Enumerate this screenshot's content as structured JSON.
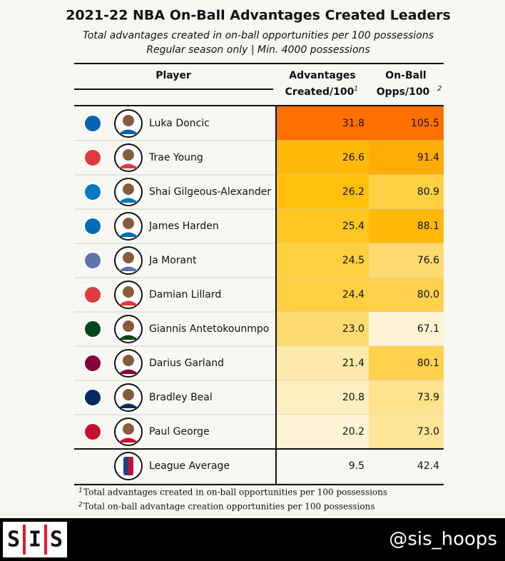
{
  "header": {
    "title": "2021-22 NBA On-Ball Advantages Created Leaders",
    "subtitle_lines": [
      "Total advantages created in on-ball opportunities per 100 possessions",
      "Regular season only | Min. 4000 possessions"
    ]
  },
  "table": {
    "columns": {
      "player": "Player",
      "adv": [
        "Advantages",
        "Created/100"
      ],
      "adv_note": "1",
      "opps": [
        "On-Ball",
        "Opps/100"
      ],
      "opps_note": "2"
    },
    "rows": [
      [
        "Luka Doncic",
        "31.8",
        "105.5"
      ],
      [
        "Trae Young",
        "26.6",
        "91.4"
      ],
      [
        "Shai Gilgeous-Alexander",
        "26.2",
        "80.9"
      ],
      [
        "James Harden",
        "25.4",
        "88.1"
      ],
      [
        "Ja Morant",
        "24.5",
        "76.6"
      ],
      [
        "Damian Lillard",
        "24.4",
        "80.0"
      ],
      [
        "Giannis Antetokounmpo",
        "23.0",
        "67.1"
      ],
      [
        "Darius Garland",
        "21.4",
        "80.1"
      ],
      [
        "Bradley Beal",
        "20.8",
        "73.9"
      ],
      [
        "Paul George",
        "20.2",
        "73.0"
      ]
    ],
    "average": [
      "League Average",
      "9.5",
      "42.4"
    ]
  },
  "footnotes": [
    {
      "marker": "1",
      "text": "Total advantages created in on-ball opportunities per 100 possessions"
    },
    {
      "marker": "2",
      "text": "Total on-ball advantage creation opportunities per 100 possessions"
    }
  ],
  "footer": {
    "logo_letters": [
      "S",
      "I",
      "S"
    ],
    "handle": "@sis_hoops"
  }
}
